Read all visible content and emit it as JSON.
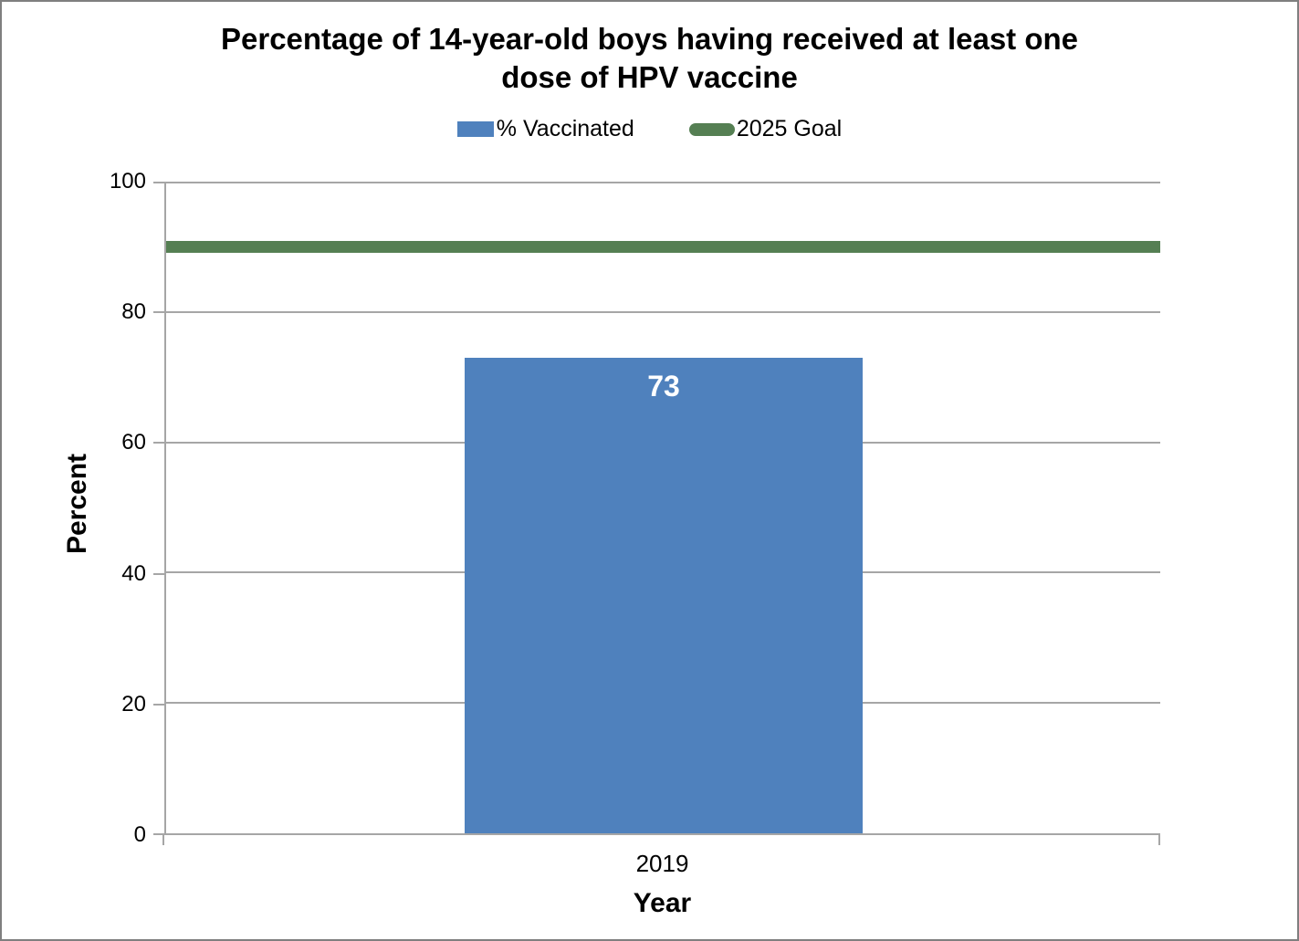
{
  "header": {
    "title_line1": "Percentage of 14-year-old boys having received at least one",
    "title_line2": "dose of HPV vaccine"
  },
  "chart_data": {
    "type": "bar",
    "title": "Percentage of 14-year-old boys having received at least one dose of HPV vaccine",
    "categories": [
      "2019"
    ],
    "series": [
      {
        "name": "% Vaccinated",
        "render_as": "bar",
        "values": [
          73
        ],
        "color": "#4f81bd"
      },
      {
        "name": "2025 Goal",
        "render_as": "goal-line",
        "values": [
          90
        ],
        "color": "#557f53"
      }
    ],
    "xlabel": "Year",
    "ylabel": "Percent",
    "ylim": [
      0,
      100
    ],
    "yticks": [
      0,
      20,
      40,
      60,
      80,
      100
    ],
    "grid": true,
    "legend_position": "top",
    "bar_label_color": "#ffffff",
    "axis_color": "#a6a6a6",
    "gridline_color": "#a6a6a6",
    "text_color": "#000000"
  }
}
